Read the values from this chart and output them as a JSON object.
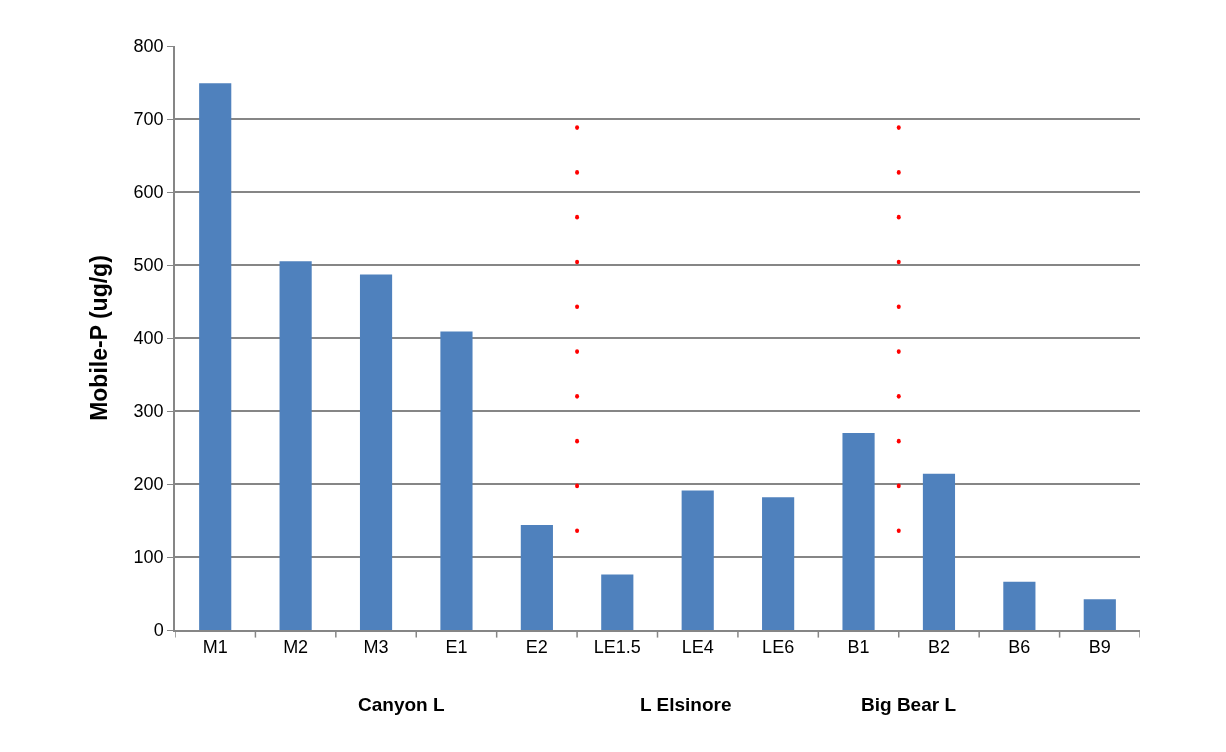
{
  "chart_data": {
    "type": "bar",
    "ylabel": "Mobile-P (ug/g)",
    "categories": [
      "M1",
      "M2",
      "M3",
      "E1",
      "E2",
      "LE1.5",
      "LE4",
      "LE6",
      "B1",
      "B2",
      "B6",
      "B9"
    ],
    "values": [
      749,
      505,
      487,
      409,
      144,
      76,
      191,
      182,
      270,
      214,
      66,
      42
    ],
    "color": "#4f81bd",
    "ylim": [
      0,
      800
    ],
    "yticks": [
      0,
      100,
      200,
      300,
      400,
      500,
      600,
      700,
      800
    ],
    "grid": "y",
    "annotations": [
      "Canyon L",
      "L Elsinore",
      "Big Bear L"
    ]
  }
}
